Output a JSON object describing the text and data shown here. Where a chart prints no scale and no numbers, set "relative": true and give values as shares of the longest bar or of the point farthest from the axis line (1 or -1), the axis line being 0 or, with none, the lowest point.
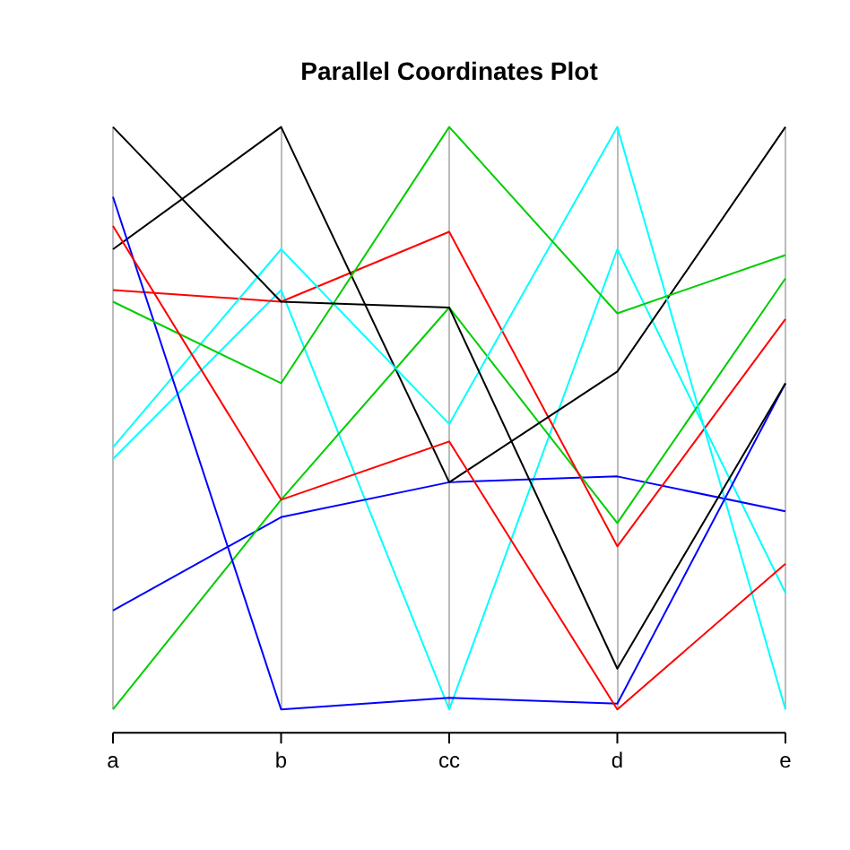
{
  "chart_data": {
    "type": "line",
    "title": "Parallel Coordinates Plot",
    "categories": [
      "a",
      "b",
      "cc",
      "d",
      "e"
    ],
    "relative": true,
    "grid": "x",
    "legend": false,
    "marker": "none",
    "line_style": "solid",
    "series": [
      {
        "color": "#000000",
        "values": [
          1.0,
          0.7,
          0.69,
          0.07,
          0.56
        ]
      },
      {
        "color": "#ff0000",
        "values": [
          0.83,
          0.36,
          0.46,
          0.0,
          0.25
        ]
      },
      {
        "color": "#00cd00",
        "values": [
          0.7,
          0.56,
          1.0,
          0.68,
          0.78
        ]
      },
      {
        "color": "#0000ff",
        "values": [
          0.88,
          0.0,
          0.02,
          0.01,
          0.56
        ]
      },
      {
        "color": "#00ffff",
        "values": [
          0.45,
          0.79,
          0.49,
          1.0,
          0.0
        ]
      },
      {
        "color": "#000000",
        "values": [
          0.79,
          1.0,
          0.39,
          0.58,
          1.0
        ]
      },
      {
        "color": "#ff0000",
        "values": [
          0.72,
          0.7,
          0.82,
          0.28,
          0.67
        ]
      },
      {
        "color": "#00cd00",
        "values": [
          0.0,
          0.36,
          0.69,
          0.32,
          0.74
        ]
      },
      {
        "color": "#0000ff",
        "values": [
          0.17,
          0.33,
          0.39,
          0.4,
          0.34
        ]
      },
      {
        "color": "#00ffff",
        "values": [
          0.43,
          0.72,
          0.0,
          0.79,
          0.2
        ]
      }
    ]
  }
}
